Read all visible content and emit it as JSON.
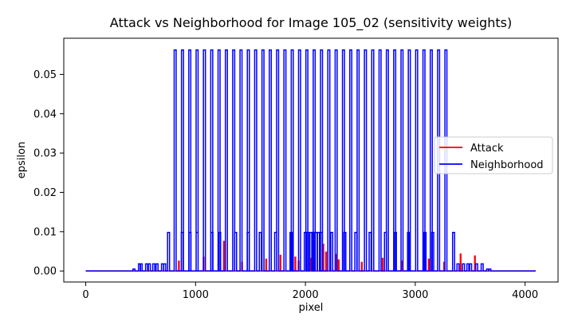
{
  "chart_data": {
    "type": "line",
    "title": "Attack vs Neighborhood for Image 105_02 (sensitivity weights)",
    "xlabel": "pixel",
    "ylabel": "epsilon",
    "xlim": [
      -200,
      4300
    ],
    "ylim": [
      -0.0028,
      0.0592
    ],
    "xticks": [
      0,
      1000,
      2000,
      3000,
      4000
    ],
    "yticks": [
      0.0,
      0.01,
      0.02,
      0.03,
      0.04,
      0.05
    ],
    "ytick_labels": [
      "0.00",
      "0.01",
      "0.02",
      "0.03",
      "0.04",
      "0.05"
    ],
    "grid": false,
    "legend_position": "center-right",
    "series": [
      {
        "name": "Attack",
        "color": "#ff0000",
        "pulses": [
          [
            845,
            0.0025
          ],
          [
            1070,
            0.0035
          ],
          [
            1255,
            0.0075
          ],
          [
            1420,
            0.0022
          ],
          [
            1640,
            0.003
          ],
          [
            1770,
            0.004
          ],
          [
            1880,
            0.0048
          ],
          [
            1905,
            0.0035
          ],
          [
            1935,
            0.0025
          ],
          [
            2050,
            0.0032
          ],
          [
            2160,
            0.0068
          ],
          [
            2185,
            0.0048
          ],
          [
            2280,
            0.0042
          ],
          [
            2300,
            0.0028
          ],
          [
            2510,
            0.0022
          ],
          [
            2700,
            0.0032
          ],
          [
            2880,
            0.0025
          ],
          [
            3120,
            0.003
          ],
          [
            3260,
            0.0022
          ],
          [
            3410,
            0.0043
          ],
          [
            3540,
            0.0038
          ]
        ]
      },
      {
        "name": "Neighborhood",
        "color": "#0000ff",
        "big_pulse_count": 38,
        "big_pulse_start": 805,
        "big_pulse_end": 3270,
        "big_pulse_value": 0.0562,
        "small_pulses": [
          [
            430,
            0.0005
          ],
          [
            480,
            0.0018
          ],
          [
            495,
            0.0018
          ],
          [
            545,
            0.0018
          ],
          [
            570,
            0.0018
          ],
          [
            610,
            0.0018
          ],
          [
            640,
            0.0018
          ],
          [
            690,
            0.0018
          ],
          [
            710,
            0.0018
          ],
          [
            745,
            0.0098
          ],
          [
            870,
            0.0098
          ],
          [
            940,
            0.0098
          ],
          [
            1005,
            0.0098
          ],
          [
            1140,
            0.0098
          ],
          [
            1210,
            0.0098
          ],
          [
            1355,
            0.0098
          ],
          [
            1470,
            0.0098
          ],
          [
            1580,
            0.0098
          ],
          [
            1720,
            0.0098
          ],
          [
            1860,
            0.0098
          ],
          [
            1990,
            0.0098
          ],
          [
            2010,
            0.0098
          ],
          [
            2040,
            0.0098
          ],
          [
            2060,
            0.0098
          ],
          [
            2090,
            0.0098
          ],
          [
            2110,
            0.0098
          ],
          [
            2135,
            0.0098
          ],
          [
            2230,
            0.0098
          ],
          [
            2350,
            0.0098
          ],
          [
            2450,
            0.0098
          ],
          [
            2580,
            0.0098
          ],
          [
            2720,
            0.0098
          ],
          [
            2810,
            0.0098
          ],
          [
            2930,
            0.0098
          ],
          [
            3080,
            0.0098
          ],
          [
            3150,
            0.0098
          ],
          [
            3340,
            0.0098
          ],
          [
            3380,
            0.0018
          ],
          [
            3430,
            0.0018
          ],
          [
            3470,
            0.0018
          ],
          [
            3495,
            0.0018
          ],
          [
            3550,
            0.0018
          ],
          [
            3600,
            0.0018
          ],
          [
            3650,
            0.0005
          ],
          [
            3670,
            0.0005
          ]
        ]
      }
    ]
  },
  "legend": {
    "attack_label": "Attack",
    "neighborhood_label": "Neighborhood"
  }
}
